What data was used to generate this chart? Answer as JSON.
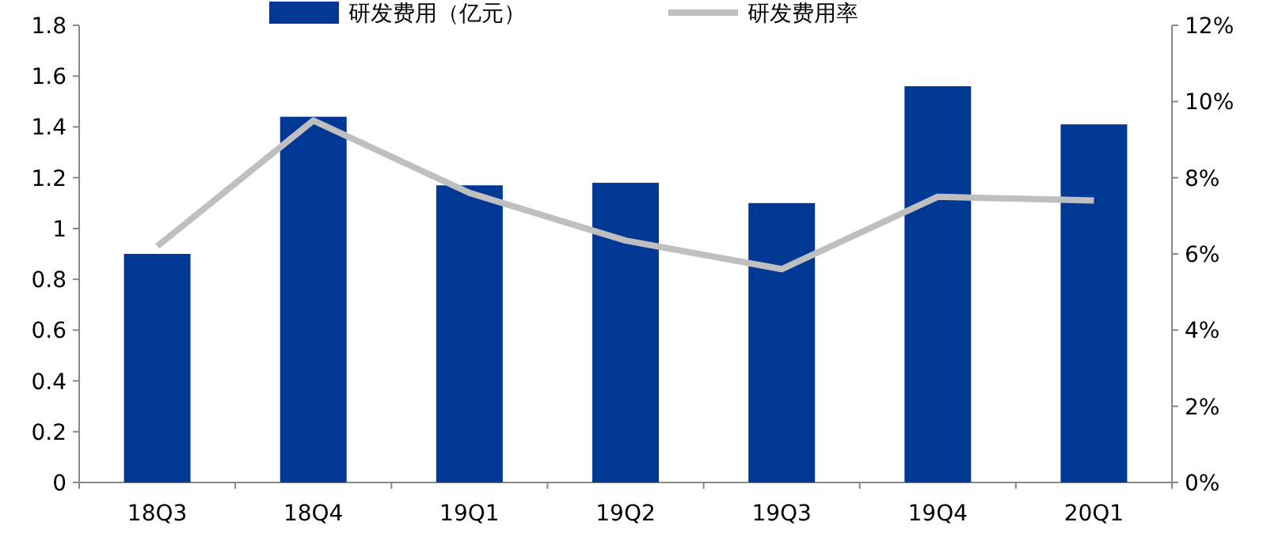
{
  "chart_data": {
    "type": "bar",
    "categories": [
      "18Q3",
      "18Q4",
      "19Q1",
      "19Q2",
      "19Q3",
      "19Q4",
      "20Q1"
    ],
    "series": [
      {
        "name": "研发费用（亿元）",
        "color": "#003893",
        "values": [
          0.9,
          1.44,
          1.17,
          1.18,
          1.1,
          1.56,
          1.41
        ]
      },
      {
        "name": "研发费用率",
        "type": "line",
        "axis": "y2",
        "color": "#bfbfbf",
        "values": [
          6.2,
          9.5,
          7.6,
          6.35,
          5.6,
          7.5,
          7.4
        ]
      }
    ],
    "ylim": [
      0,
      1.8
    ],
    "yticks": [
      0,
      0.2,
      0.4,
      0.6,
      0.8,
      1,
      1.2,
      1.4,
      1.6,
      1.8
    ],
    "y2lim": [
      0,
      12
    ],
    "y2ticks": [
      {
        "value": 0,
        "label": "0%"
      },
      {
        "value": 2,
        "label": "2%"
      },
      {
        "value": 4,
        "label": "4%"
      },
      {
        "value": 6,
        "label": "6%"
      },
      {
        "value": 8,
        "label": "8%"
      },
      {
        "value": 10,
        "label": "10%"
      },
      {
        "value": 12,
        "label": "12%"
      }
    ],
    "legend": "top",
    "grid": false,
    "marker": "none",
    "line_style": "solid"
  }
}
